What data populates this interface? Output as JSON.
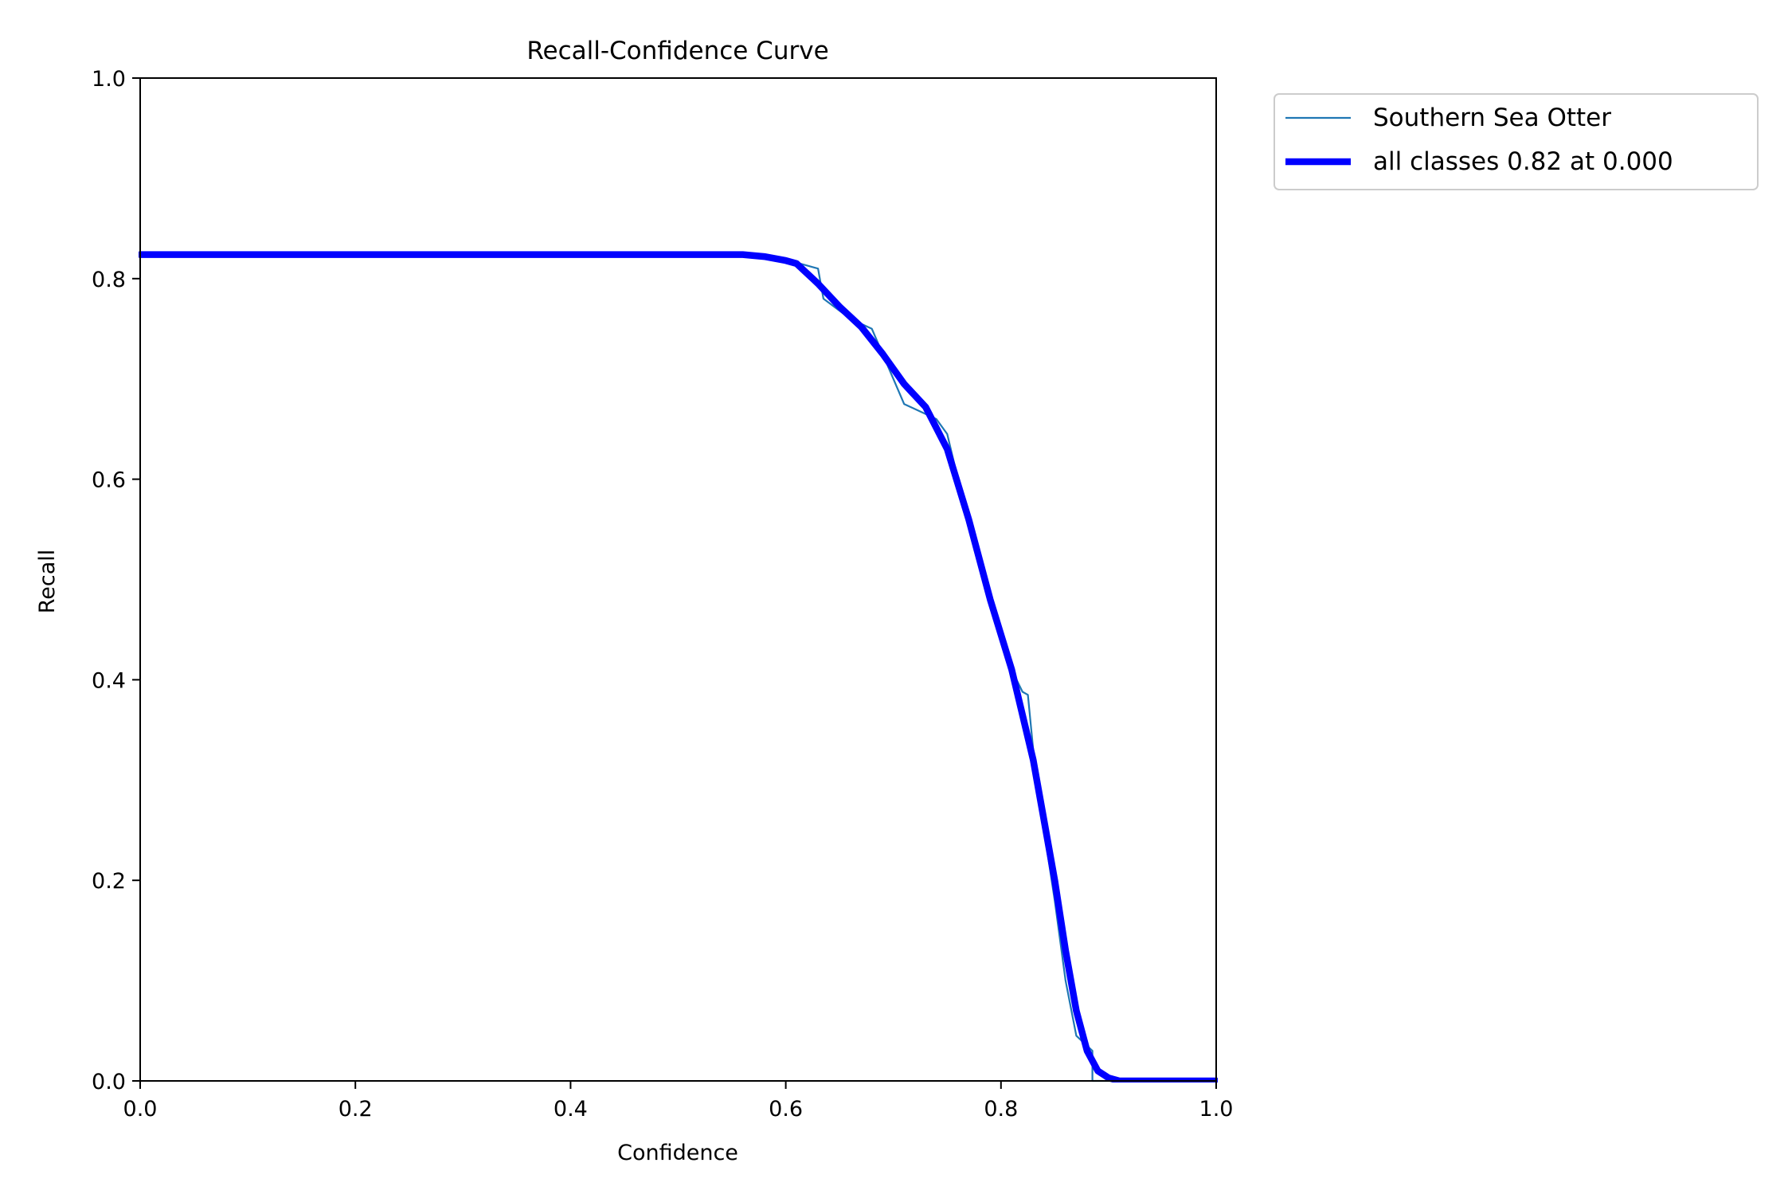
{
  "chart_data": {
    "type": "line",
    "title": "Recall-Confidence Curve",
    "xlabel": "Confidence",
    "ylabel": "Recall",
    "xlim": [
      0.0,
      1.0
    ],
    "ylim": [
      0.0,
      1.0
    ],
    "xticks": [
      "0.0",
      "0.2",
      "0.4",
      "0.6",
      "0.8",
      "1.0"
    ],
    "yticks": [
      "0.0",
      "0.2",
      "0.4",
      "0.6",
      "0.8",
      "1.0"
    ],
    "grid": false,
    "legend_position": "outside top-right",
    "series": [
      {
        "name": "Southern Sea Otter",
        "color": "#1f77b4",
        "line": "thin",
        "x": [
          0.0,
          0.1,
          0.2,
          0.3,
          0.4,
          0.5,
          0.56,
          0.6,
          0.61,
          0.63,
          0.635,
          0.66,
          0.68,
          0.7,
          0.71,
          0.73,
          0.74,
          0.75,
          0.76,
          0.78,
          0.8,
          0.81,
          0.82,
          0.825,
          0.83,
          0.84,
          0.85,
          0.86,
          0.87,
          0.88,
          0.885,
          0.885,
          0.9,
          0.95,
          1.0
        ],
        "y": [
          0.824,
          0.824,
          0.824,
          0.824,
          0.824,
          0.824,
          0.824,
          0.818,
          0.816,
          0.81,
          0.78,
          0.76,
          0.75,
          0.7,
          0.675,
          0.665,
          0.66,
          0.645,
          0.6,
          0.52,
          0.45,
          0.41,
          0.388,
          0.385,
          0.33,
          0.25,
          0.18,
          0.1,
          0.045,
          0.035,
          0.03,
          0.0,
          0.0,
          0.0,
          0.0
        ]
      },
      {
        "name": "all classes 0.82 at 0.000",
        "color": "#0000ff",
        "line": "thick",
        "x": [
          0.0,
          0.1,
          0.2,
          0.3,
          0.4,
          0.5,
          0.56,
          0.58,
          0.6,
          0.61,
          0.63,
          0.65,
          0.67,
          0.69,
          0.71,
          0.73,
          0.75,
          0.77,
          0.79,
          0.81,
          0.83,
          0.85,
          0.86,
          0.87,
          0.88,
          0.89,
          0.9,
          0.91,
          0.95,
          1.0
        ],
        "y": [
          0.824,
          0.824,
          0.824,
          0.824,
          0.824,
          0.824,
          0.824,
          0.822,
          0.818,
          0.815,
          0.795,
          0.772,
          0.752,
          0.725,
          0.695,
          0.672,
          0.63,
          0.56,
          0.48,
          0.41,
          0.32,
          0.2,
          0.13,
          0.07,
          0.03,
          0.01,
          0.003,
          0.0,
          0.0,
          0.0
        ]
      }
    ]
  }
}
